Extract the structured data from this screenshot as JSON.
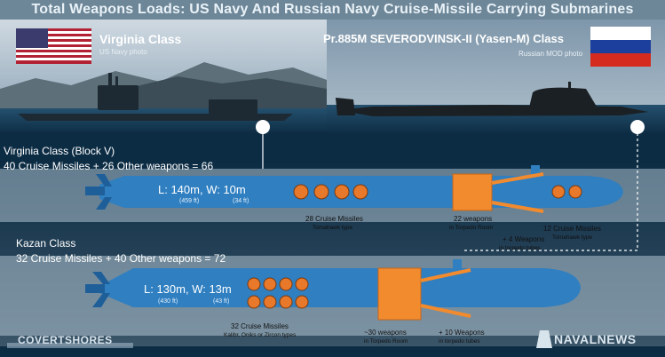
{
  "title": "Total Weapons Loads: US Navy And Russian Navy Cruise-Missile Carrying Submarines",
  "us": {
    "class_name": "Virginia Class",
    "photo_credit": "US Navy photo"
  },
  "russia": {
    "class_name": "Pr.885M SEVERODVINSK-II (Yasen-M) Class",
    "photo_credit": "Russian MOD photo"
  },
  "virginia": {
    "heading": "Virginia Class (Block V)",
    "summary": "40 Cruise Missiles + 26 Other weapons = 66",
    "dimensions": "L: 140m, W: 10m",
    "length_ft": "(459 ft)",
    "width_ft": "(34 ft)",
    "cruise_label": "28 Cruise Missiles",
    "cruise_sub": "Tomahawk type",
    "torpedo_label": "22 weapons",
    "torpedo_sub": "in Torpedo Room",
    "bow_cruise_label": "12 Cruise Missiles",
    "bow_cruise_sub": "Tomahawk type",
    "tube_label": "+ 4 Weapons",
    "tube_sub": "in torpedo tubes"
  },
  "kazan": {
    "heading": "Kazan Class",
    "summary": "32 Cruise Missiles + 40 Other weapons = 72",
    "dimensions": "L: 130m, W: 13m",
    "length_ft": "(430 ft)",
    "width_ft": "(43 ft)",
    "cruise_label": "32 Cruise Missiles",
    "cruise_sub": "Kalibr, Oniks or Zircon types",
    "torpedo_label": "~30 weapons",
    "torpedo_sub": "in Torpedo Room",
    "tube_label": "+ 10 Weapons",
    "tube_sub": "in torpedo tubes"
  },
  "logos": {
    "left": "COVERTSHORES",
    "right": "NAVALNEWS"
  },
  "colors": {
    "hull": "#2f7fc1",
    "hull_dark": "#1f5f99",
    "torpedo_room": "#f28a2e",
    "missile": "#e8782a"
  }
}
